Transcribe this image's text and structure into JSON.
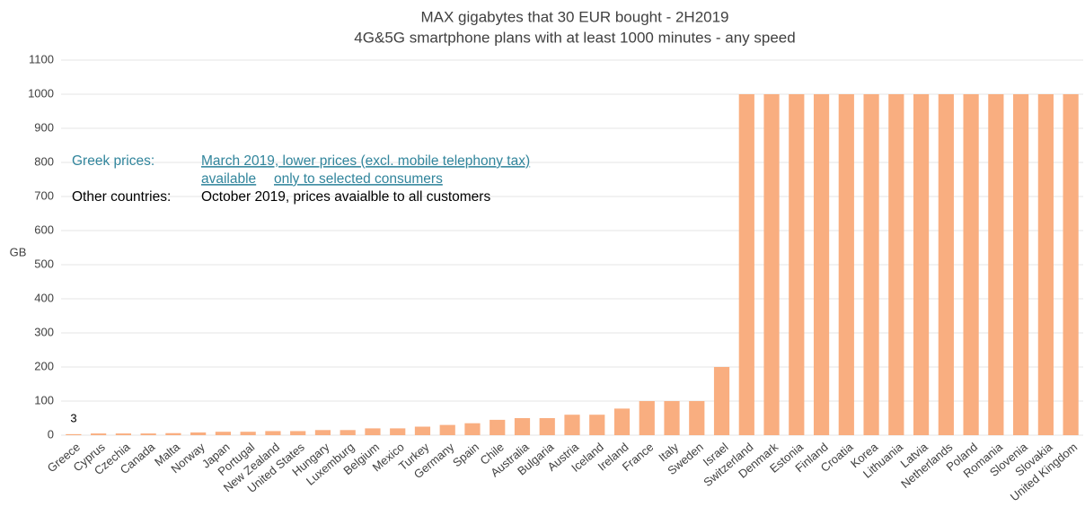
{
  "chart_data": {
    "type": "bar",
    "title": "MAX gigabytes that 30 EUR bought - 2H2019",
    "subtitle": "4G&5G smartphone plans with at least 1000 minutes - any speed",
    "y_label": "GB",
    "categories": [
      "Greece",
      "Cyprus",
      "Czechia",
      "Canada",
      "Malta",
      "Norway",
      "Japan",
      "Portugal",
      "New Zealand",
      "United States",
      "Hungary",
      "Luxemburg",
      "Belgium",
      "Mexico",
      "Turkey",
      "Germany",
      "Spain",
      "Chile",
      "Australia",
      "Bulgaria",
      "Austria",
      "Iceland",
      "Ireland",
      "France",
      "Italy",
      "Sweden",
      "Israel",
      "Switzerland",
      "Denmark",
      "Estonia",
      "Finland",
      "Croatia",
      "Korea",
      "Lithuania",
      "Latvia",
      "Netherlands",
      "Poland",
      "Romania",
      "Slovenia",
      "Slovakia",
      "United Kingdom"
    ],
    "values": [
      3,
      5,
      5,
      5,
      6,
      8,
      10,
      10,
      12,
      12,
      15,
      15,
      20,
      20,
      25,
      30,
      35,
      45,
      50,
      50,
      60,
      60,
      78,
      100,
      100,
      100,
      200,
      1000,
      1000,
      1000,
      1000,
      1000,
      1000,
      1000,
      1000,
      1000,
      1000,
      1000,
      1000,
      1000,
      1000
    ],
    "color": "#f9ae80",
    "ylim": [
      0,
      1100
    ],
    "yticks": [
      0,
      100,
      200,
      300,
      400,
      500,
      600,
      700,
      800,
      900,
      1000,
      1100
    ],
    "grid": true,
    "annotations": [
      {
        "text": "Greek prices:",
        "color": "#31859c"
      },
      {
        "text": "March 2019, lower prices (excl. mobile telephony tax)",
        "color": "#31859c",
        "underline": true
      },
      {
        "text": "available",
        "color": "#31859c",
        "underline": true
      },
      {
        "text": "only to selected consumers",
        "color": "#31859c",
        "underline": true
      },
      {
        "text": "Other countries:",
        "color": "#000000"
      },
      {
        "text": "October 2019, prices avaialble to all customers",
        "color": "#000000"
      }
    ]
  }
}
